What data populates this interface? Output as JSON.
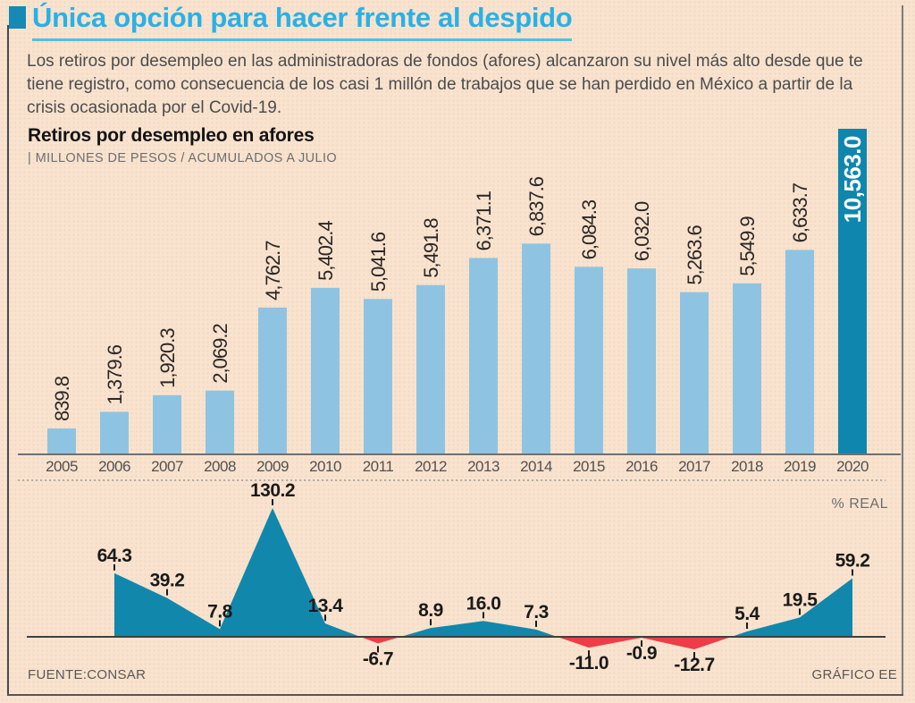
{
  "header": {
    "title": "Única opción para hacer frente al despido",
    "intro": "Los retiros por desempleo en las administradoras de fondos (afores) alcanzaron su nivel más alto desde que te tiene registro, como consecuencia de los casi 1 millón de trabajos que se han perdido en México a partir de la crisis ocasionada por el Covid-19."
  },
  "chart_header": {
    "title": "Retiros por desempleo en afores",
    "units": "| MILLONES DE PESOS / ACUMULADOS A JULIO"
  },
  "chart_data": [
    {
      "type": "bar",
      "title": "Retiros por desempleo en afores",
      "subtitle": "MILLONES DE PESOS / ACUMULADOS A JULIO",
      "categories": [
        "2005",
        "2006",
        "2007",
        "2008",
        "2009",
        "2010",
        "2011",
        "2012",
        "2013",
        "2014",
        "2015",
        "2016",
        "2017",
        "2018",
        "2019",
        "2020"
      ],
      "values": [
        839.8,
        1379.6,
        1920.3,
        2069.2,
        4762.7,
        5402.4,
        5041.6,
        5491.8,
        6371.1,
        6837.6,
        6084.3,
        6032.0,
        5263.6,
        5549.9,
        6633.7,
        10563.0
      ],
      "labels": [
        "839.8",
        "1,379.6",
        "1,920.3",
        "2,069.2",
        "4,762.7",
        "5,402.4",
        "5,041.6",
        "5,491.8",
        "6,371.1",
        "6,837.6",
        "6,084.3",
        "6,032.0",
        "5,263.6",
        "5,549.9",
        "6,633.7",
        "10,563.0"
      ],
      "highlight_index": 15,
      "ylim": [
        0,
        10563
      ],
      "bar_color": "#8ec4e2",
      "highlight_color": "#0e86ad",
      "label_color": "#2b2727",
      "highlight_label_color": "#ffffff",
      "axis_label_color": "#505154"
    },
    {
      "type": "area",
      "label": "% REAL",
      "categories": [
        "2006",
        "2007",
        "2008",
        "2009",
        "2010",
        "2011",
        "2012",
        "2013",
        "2014",
        "2015",
        "2016",
        "2017",
        "2018",
        "2019",
        "2020"
      ],
      "values": [
        64.3,
        39.2,
        7.8,
        130.2,
        13.4,
        -6.7,
        8.9,
        16.0,
        7.3,
        -11.0,
        -0.9,
        -12.7,
        5.4,
        19.5,
        59.2
      ],
      "labels": [
        "64.3",
        "39.2",
        "7.8",
        "130.2",
        "13.4",
        "-6.7",
        "8.9",
        "16.0",
        "7.3",
        "-11.0",
        "-0.9",
        "-12.7",
        "5.4",
        "19.5",
        "59.2"
      ],
      "ylim": [
        -12.7,
        130.2
      ],
      "positive_color": "#1187ac",
      "negative_color": "#ee3d48",
      "label_color": "#1a1a18"
    }
  ],
  "footer": {
    "source": "FUENTE:CONSAR",
    "credit": "GRÁFICO EE"
  },
  "colors": {
    "background": "#f9e3ce",
    "title_cyan": "#29b1e6",
    "title_marker": "#168ab5"
  }
}
